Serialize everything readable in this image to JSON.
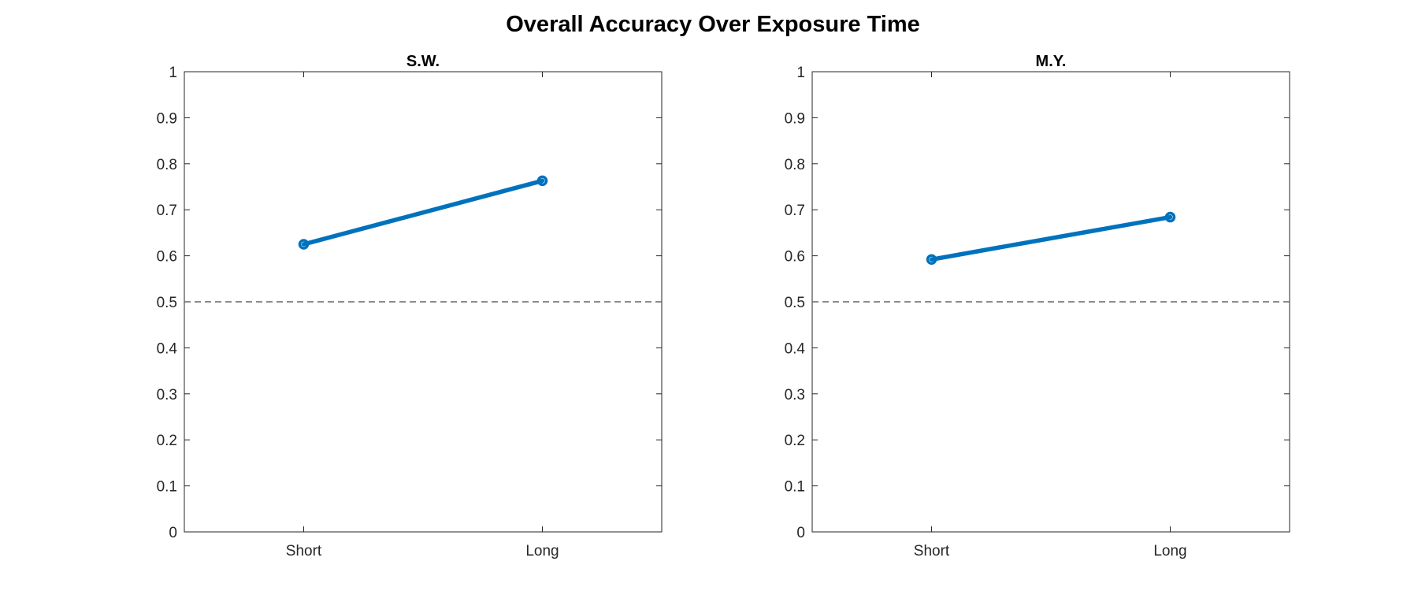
{
  "figure": {
    "title": "Overall Accuracy Over Exposure Time"
  },
  "chart_data": [
    {
      "type": "line",
      "title": "S.W.",
      "xlabel": "",
      "ylabel": "",
      "categories": [
        "Short",
        "Long"
      ],
      "series": [
        {
          "values": [
            0.625,
            0.763
          ]
        }
      ],
      "ylim": [
        0,
        1
      ],
      "yticks": [
        0,
        0.1,
        0.2,
        0.3,
        0.4,
        0.5,
        0.6,
        0.7,
        0.8,
        0.9,
        1
      ],
      "ytick_labels": [
        "0",
        "0.1",
        "0.2",
        "0.3",
        "0.4",
        "0.5",
        "0.6",
        "0.7",
        "0.8",
        "0.9",
        "1"
      ],
      "reference_line": {
        "y": 0.5,
        "style": "dashed",
        "color": "#666666"
      },
      "grid": false,
      "legend": "none",
      "series_color": "#0072BD"
    },
    {
      "type": "line",
      "title": "M.Y.",
      "xlabel": "",
      "ylabel": "",
      "categories": [
        "Short",
        "Long"
      ],
      "series": [
        {
          "values": [
            0.592,
            0.684
          ]
        }
      ],
      "ylim": [
        0,
        1
      ],
      "yticks": [
        0,
        0.1,
        0.2,
        0.3,
        0.4,
        0.5,
        0.6,
        0.7,
        0.8,
        0.9,
        1
      ],
      "ytick_labels": [
        "0",
        "0.1",
        "0.2",
        "0.3",
        "0.4",
        "0.5",
        "0.6",
        "0.7",
        "0.8",
        "0.9",
        "1"
      ],
      "reference_line": {
        "y": 0.5,
        "style": "dashed",
        "color": "#666666"
      },
      "grid": false,
      "legend": "none",
      "series_color": "#0072BD"
    }
  ]
}
